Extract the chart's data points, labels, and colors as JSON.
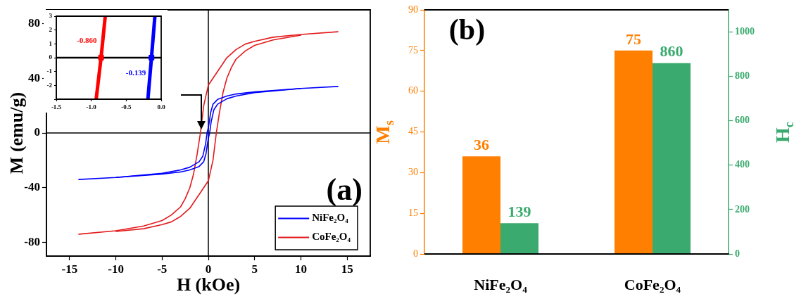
{
  "chart_data": [
    {
      "type": "line",
      "xlabel": "H (kOe)",
      "ylabel": "M (emu/g)",
      "xlim": [
        -17.5,
        17.5
      ],
      "ylim": [
        -90,
        90
      ],
      "xticks": [
        -15,
        -10,
        -5,
        0,
        5,
        10,
        15
      ],
      "yticks": [
        -80,
        -40,
        0,
        40,
        80
      ],
      "legend": "bottom right",
      "marker": "none",
      "line_style": "solid",
      "annotations": [
        "(a)"
      ],
      "ref_lines": [
        {
          "axis": "x",
          "value": 0,
          "color": "#000000"
        },
        {
          "axis": "y",
          "value": 0,
          "color": "#000000"
        }
      ],
      "series": [
        {
          "name": "NiFe₂O₄",
          "color": "#0000ff",
          "x": [
            -14,
            -10,
            -5,
            -3,
            -2,
            -1,
            -0.6,
            -0.3,
            -0.139,
            0,
            0.1,
            0.25,
            0.5,
            1,
            2,
            3,
            5,
            10,
            14
          ],
          "values": [
            -34,
            -32.5,
            -29.5,
            -27,
            -25,
            -21,
            -17,
            -8,
            0,
            4,
            8,
            15,
            21,
            24.5,
            27,
            28.5,
            30,
            32.5,
            34
          ]
        },
        {
          "color": "#0000ff",
          "x": [
            -10,
            -5,
            -3,
            -2,
            -1,
            -0.5,
            -0.25,
            -0.1,
            0,
            0.139,
            0.3,
            0.6,
            1,
            2,
            3,
            5,
            10
          ],
          "values": [
            -32.5,
            -30,
            -28.5,
            -27,
            -24.5,
            -21,
            -15,
            -8,
            -4,
            0,
            8,
            17,
            21,
            25,
            27,
            29.5,
            32.5
          ]
        },
        {
          "name": "CoFe₂O₄",
          "color": "#e31a1c",
          "x": [
            -14,
            -10,
            -7,
            -5,
            -4,
            -3,
            -2.5,
            -2,
            -1.6,
            -1.2,
            -0.86,
            -0.5,
            0,
            0.5,
            1,
            1.5,
            2,
            3,
            4,
            5,
            7,
            10,
            14
          ],
          "values": [
            -74,
            -71.5,
            -68,
            -64,
            -60,
            -54,
            -48,
            -40,
            -30,
            -15,
            0,
            20,
            35,
            40,
            45,
            50,
            55,
            61,
            65,
            67,
            70,
            72,
            74
          ]
        },
        {
          "color": "#e31a1c",
          "x": [
            -10,
            -7,
            -5,
            -4,
            -3,
            -2,
            -1.5,
            -1,
            -0.5,
            0,
            0.5,
            0.86,
            1.2,
            1.6,
            2,
            2.5,
            3,
            4,
            5,
            7,
            10
          ],
          "values": [
            -72,
            -70,
            -67,
            -65,
            -61,
            -55,
            -50,
            -45,
            -40,
            -35,
            -20,
            0,
            15,
            30,
            40,
            48,
            54,
            60,
            64,
            68,
            71.5
          ]
        }
      ]
    },
    {
      "type": "line",
      "xlim": [
        -1.5,
        0
      ],
      "ylim": [
        -3,
        3
      ],
      "xticks": [
        -1.5,
        {
          "value": -1,
          "label": "-1.0"
        },
        -0.5,
        {
          "value": 0,
          "label": "0.0"
        }
      ],
      "yticks": [
        {
          "value": -3,
          "label": null
        },
        -2,
        -1,
        0,
        1,
        2,
        3
      ],
      "marker": "none",
      "ref_lines": [
        {
          "axis": "y",
          "value": 0,
          "color": "#000000"
        }
      ],
      "annotations": [
        {
          "text": "-0.860",
          "x": -0.86,
          "y": 0
        },
        {
          "text": "-0.139",
          "x": -0.139,
          "y": 0
        }
      ],
      "series": [
        {
          "color": "#ff0000",
          "x": [
            -0.93,
            -0.86,
            -0.8
          ],
          "values": [
            -3,
            0,
            3
          ]
        },
        {
          "color": "#0000ff",
          "x": [
            -0.19,
            -0.139,
            -0.09
          ],
          "values": [
            -3,
            0,
            3
          ]
        },
        {
          "type": "scatter",
          "marker": "square",
          "color": "#ff0000",
          "x": [
            -0.86
          ],
          "values": [
            0
          ]
        },
        {
          "type": "scatter",
          "marker": "square",
          "color": "#0000ff",
          "x": [
            -0.139
          ],
          "values": [
            0
          ]
        }
      ]
    },
    {
      "type": "bar",
      "categories": [
        "NiFe₂O₄",
        "CoFe₂O₄"
      ],
      "ylabel": "M$_{s}$",
      "y2label": "H$_{c}$",
      "ylim": [
        0,
        90
      ],
      "yticks": [
        0,
        15,
        30,
        45,
        60,
        75,
        90
      ],
      "y2lim": [
        0,
        1100
      ],
      "y2ticks": [
        0,
        200,
        400,
        600,
        800,
        1000
      ],
      "data_labels": true,
      "annotations": [
        "(b)"
      ],
      "series": [
        {
          "color": "#ff7f00",
          "values": [
            36,
            75
          ]
        },
        {
          "color": "#3aaa6e",
          "values": [
            139,
            860
          ],
          "axis": "y2"
        }
      ]
    }
  ]
}
